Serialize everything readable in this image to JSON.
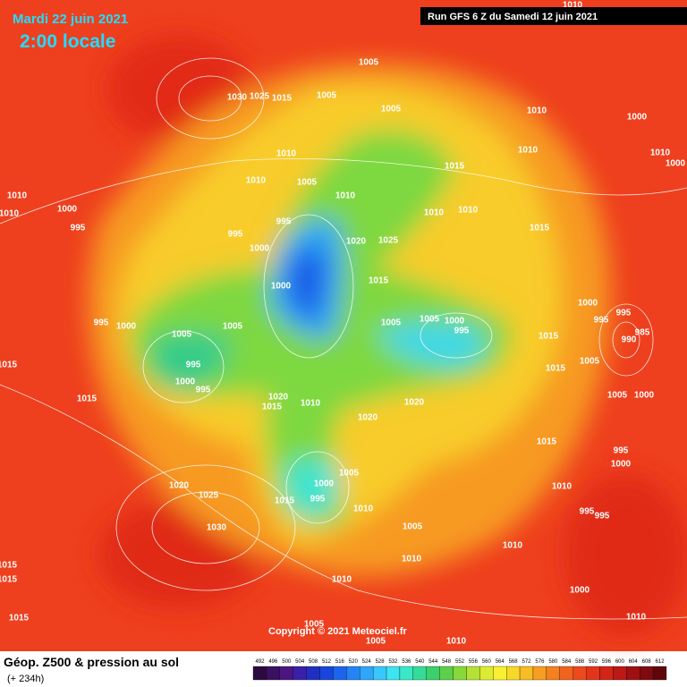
{
  "header": {
    "date": "Mardi 22 juin 2021",
    "time": "2:00 locale",
    "run": "Run GFS 6 Z du Samedi 12 juin 2021"
  },
  "map": {
    "copyright": "Copyright © 2021 Meteociel.fr",
    "pressure_labels": [
      "1005",
      "1030",
      "1025",
      "1015",
      "1005",
      "1005",
      "1010",
      "1000",
      "1010",
      "1010",
      "1010",
      "1000",
      "1015",
      "1010",
      "1005",
      "1010",
      "1010",
      "1000",
      "1010",
      "995",
      "995",
      "995",
      "1000",
      "1010",
      "1010",
      "1020",
      "1025",
      "1015",
      "1015",
      "1000",
      "995",
      "1000",
      "1005",
      "1005",
      "1005",
      "1005",
      "1000",
      "995",
      "1000",
      "995",
      "995",
      "985",
      "990",
      "1015",
      "995",
      "1005",
      "1015",
      "1015",
      "1000",
      "995",
      "1015",
      "1020",
      "1015",
      "1010",
      "1020",
      "1005",
      "1000",
      "1020",
      "1015",
      "1005",
      "995",
      "1000",
      "1000",
      "1010",
      "1020",
      "1025",
      "995",
      "1015",
      "1010",
      "995",
      "995",
      "1005",
      "1030",
      "1010",
      "1010",
      "1015",
      "1015",
      "1010",
      "1000",
      "1015",
      "1005",
      "1010",
      "1005",
      "1010",
      "1010"
    ]
  },
  "legend": {
    "title": "Géop. Z500 & pression au sol",
    "subtitle": "(+ 234h)",
    "levels": [
      492,
      496,
      500,
      504,
      508,
      512,
      516,
      520,
      524,
      528,
      532,
      536,
      540,
      544,
      548,
      552,
      556,
      560,
      564,
      568,
      572,
      576,
      580,
      584,
      588,
      592,
      596,
      600,
      604,
      608,
      612
    ]
  }
}
